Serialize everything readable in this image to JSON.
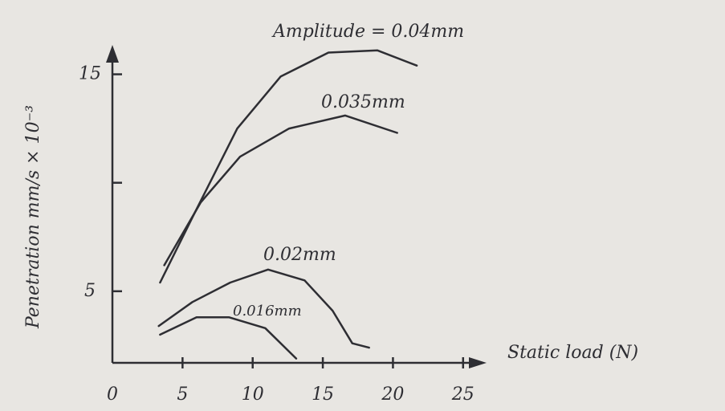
{
  "chart_data": {
    "type": "line",
    "xlabel": "Static load (N)",
    "ylabel": "Penetration mm/s × 10⁻³",
    "xlim": [
      0,
      26.5
    ],
    "ylim": [
      1.7,
      16.5
    ],
    "xticks": [
      0,
      5,
      10,
      15,
      20,
      25
    ],
    "yticks": [
      5,
      {
        "value": 10,
        "label": null
      },
      15
    ],
    "series": [
      {
        "name": "Amplitude = 0.04mm",
        "color": "#2e2e33",
        "x": [
          3.4,
          5.7,
          8.9,
          12,
          15.4,
          18.9,
          21.7
        ],
        "values": [
          5.4,
          8.4,
          12.5,
          14.9,
          16.0,
          16.1,
          15.4
        ]
      },
      {
        "name": "0.035mm",
        "color": "#2e2e33",
        "x": [
          3.7,
          6.3,
          9.1,
          12.6,
          16.6,
          20.3
        ],
        "values": [
          6.2,
          9.1,
          11.2,
          12.5,
          13.1,
          12.3
        ]
      },
      {
        "name": "0.02mm",
        "color": "#2e2e33",
        "x": [
          3.3,
          5.7,
          8.4,
          11.1,
          13.7,
          15.7,
          17.1,
          18.3
        ],
        "values": [
          3.4,
          4.5,
          5.4,
          6.0,
          5.5,
          4.1,
          2.6,
          2.4
        ]
      },
      {
        "name": "0.016mm",
        "color": "#2e2e33",
        "x": [
          3.4,
          6.0,
          8.3,
          10.9,
          13.1
        ],
        "values": [
          3.0,
          3.8,
          3.8,
          3.3,
          1.9
        ]
      }
    ]
  }
}
